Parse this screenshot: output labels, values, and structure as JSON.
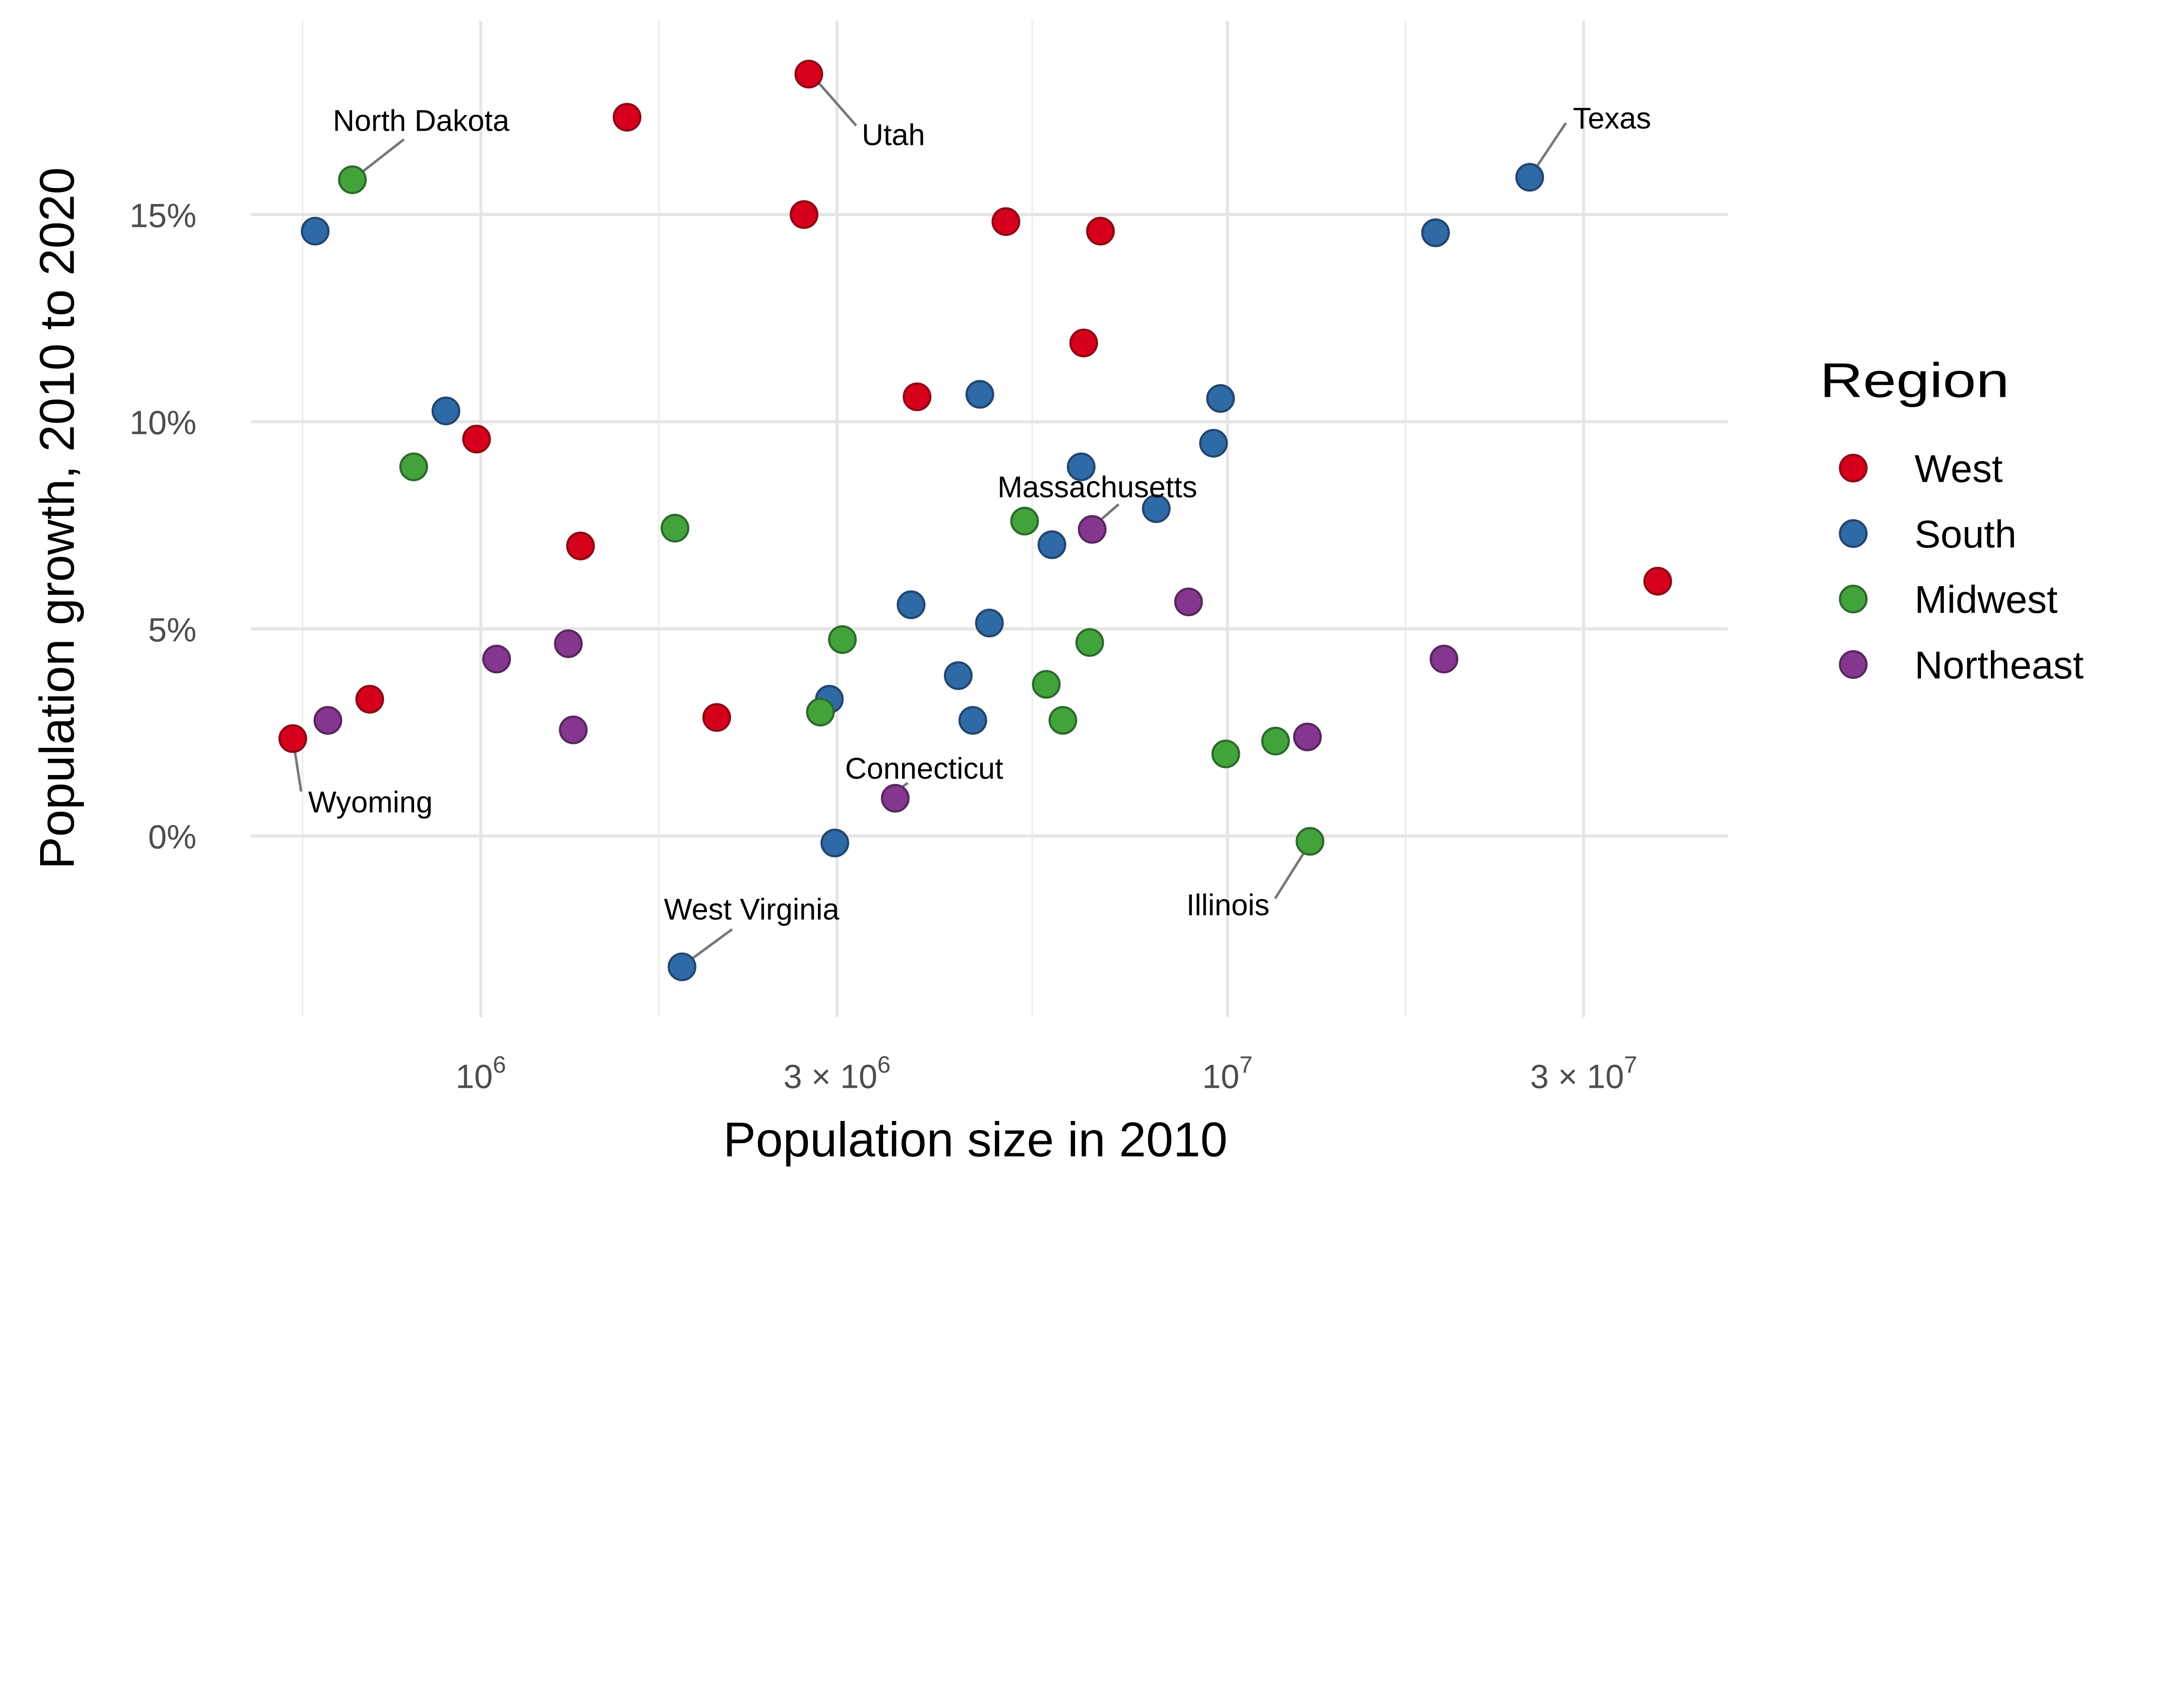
{
  "chart_data": {
    "type": "scatter",
    "xlabel": "Population size in 2010",
    "ylabel": "Population growth, 2010 to 2020",
    "x_scale": "log10",
    "xlim": [
      492000,
      46800000
    ],
    "ylim": [
      -4.37,
      19.17
    ],
    "grid": true,
    "x_ticks": [
      {
        "value": 1000000,
        "prefix": "",
        "base": "10",
        "exp": "6"
      },
      {
        "value": 3000000,
        "prefix": "3 × ",
        "base": "10",
        "exp": "6"
      },
      {
        "value": 10000000,
        "prefix": "",
        "base": "10",
        "exp": "7"
      },
      {
        "value": 30000000,
        "prefix": "3 × ",
        "base": "10",
        "exp": "7"
      }
    ],
    "x_minor_breaks": [
      577000,
      1732000,
      5477000,
      17320000
    ],
    "y_ticks": [
      {
        "value": 0,
        "label": "0%"
      },
      {
        "value": 5,
        "label": "5%"
      },
      {
        "value": 10,
        "label": "10%"
      },
      {
        "value": 15,
        "label": "15%"
      }
    ],
    "legend": {
      "title": "Region",
      "placement": "right",
      "entries": [
        {
          "name": "West",
          "fill": "#D7001C",
          "stroke": "#8E0A17"
        },
        {
          "name": "South",
          "fill": "#2E6AA6",
          "stroke": "#24466E"
        },
        {
          "name": "Midwest",
          "fill": "#43A33B",
          "stroke": "#2E6A2E"
        },
        {
          "name": "Northeast",
          "fill": "#85368F",
          "stroke": "#57285E"
        }
      ]
    },
    "series": [
      {
        "name": "West",
        "points": [
          {
            "x": 1570000,
            "y": 17.35
          },
          {
            "x": 2750000,
            "y": 18.39,
            "label": "Utah"
          },
          {
            "x": 2710000,
            "y": 15.0
          },
          {
            "x": 5050000,
            "y": 14.83
          },
          {
            "x": 6760000,
            "y": 14.6
          },
          {
            "x": 6420000,
            "y": 11.9
          },
          {
            "x": 3840000,
            "y": 10.6
          },
          {
            "x": 987000,
            "y": 9.58
          },
          {
            "x": 1360000,
            "y": 7.0
          },
          {
            "x": 2070000,
            "y": 2.86
          },
          {
            "x": 710000,
            "y": 3.3
          },
          {
            "x": 560000,
            "y": 2.35,
            "label": "Wyoming"
          },
          {
            "x": 37700000,
            "y": 6.15
          }
        ]
      },
      {
        "name": "South",
        "points": [
          {
            "x": 600000,
            "y": 14.6
          },
          {
            "x": 898000,
            "y": 10.26
          },
          {
            "x": 1860000,
            "y": -3.16,
            "label": "West Virginia"
          },
          {
            "x": 2930000,
            "y": 3.3
          },
          {
            "x": 2980000,
            "y": -0.17
          },
          {
            "x": 3770000,
            "y": 5.58
          },
          {
            "x": 4360000,
            "y": 3.87
          },
          {
            "x": 4560000,
            "y": 2.79
          },
          {
            "x": 4660000,
            "y": 10.66
          },
          {
            "x": 4800000,
            "y": 5.14
          },
          {
            "x": 5820000,
            "y": 7.03
          },
          {
            "x": 6370000,
            "y": 8.91
          },
          {
            "x": 8030000,
            "y": 7.9
          },
          {
            "x": 9580000,
            "y": 9.48
          },
          {
            "x": 9790000,
            "y": 10.56
          },
          {
            "x": 19000000,
            "y": 14.56
          },
          {
            "x": 25400000,
            "y": 15.9,
            "label": "Texas"
          }
        ]
      },
      {
        "name": "Midwest",
        "points": [
          {
            "x": 673000,
            "y": 15.84,
            "label": "North Dakota"
          },
          {
            "x": 813000,
            "y": 8.91
          },
          {
            "x": 1820000,
            "y": 7.43
          },
          {
            "x": 2850000,
            "y": 2.99
          },
          {
            "x": 3050000,
            "y": 4.74
          },
          {
            "x": 5350000,
            "y": 7.6
          },
          {
            "x": 5720000,
            "y": 3.66
          },
          {
            "x": 6020000,
            "y": 2.79
          },
          {
            "x": 6540000,
            "y": 4.67
          },
          {
            "x": 9950000,
            "y": 1.98
          },
          {
            "x": 11600000,
            "y": 2.29
          },
          {
            "x": 12900000,
            "y": -0.13,
            "label": "Illinois"
          }
        ]
      },
      {
        "name": "Northeast",
        "points": [
          {
            "x": 624000,
            "y": 2.79
          },
          {
            "x": 1050000,
            "y": 4.27
          },
          {
            "x": 1310000,
            "y": 4.64
          },
          {
            "x": 1330000,
            "y": 2.56
          },
          {
            "x": 3590000,
            "y": 0.91,
            "label": "Connecticut"
          },
          {
            "x": 6590000,
            "y": 7.4,
            "label": "Massachusetts"
          },
          {
            "x": 8870000,
            "y": 5.65
          },
          {
            "x": 12800000,
            "y": 2.39
          },
          {
            "x": 19500000,
            "y": 4.27
          }
        ]
      }
    ]
  }
}
